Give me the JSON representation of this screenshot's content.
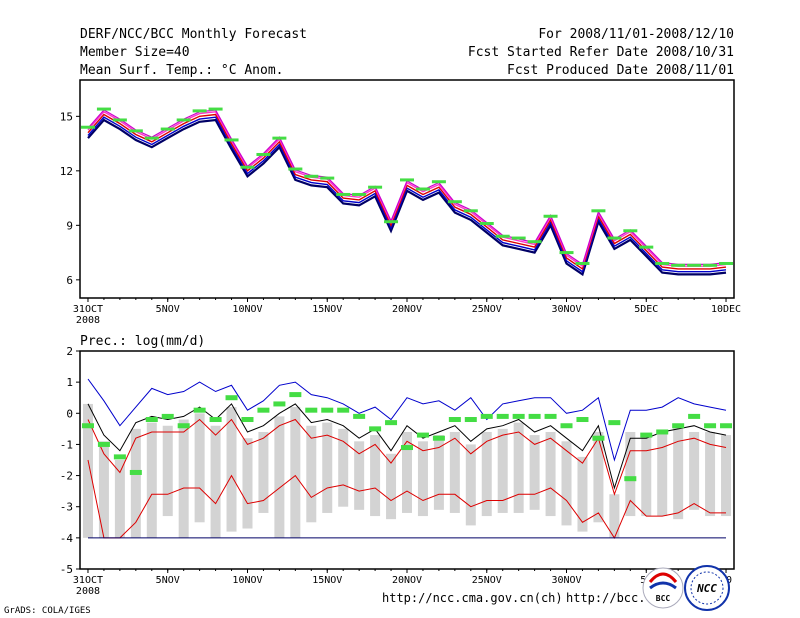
{
  "header": {
    "line1_left": "DERF/NCC/BCC Monthly Forecast",
    "line2_left": "Member Size=40",
    "line3_left": "Mean Surf. Temp.: °C Anom.",
    "line1_right": "For 2008/11/01-2008/12/10",
    "line2_right": "Fcst Started Refer Date 2008/10/31",
    "line3_right": "Fcst Produced Date 2008/11/01"
  },
  "footer": {
    "grads_credit": "GrADS: COLA/IGES",
    "url_1": "http://ncc.cma.gov.cn(ch)",
    "url_2": "http://bcc.",
    "logo_bcc_text": "BCC",
    "logo_ncc_text": "NCC"
  },
  "colors": {
    "blue": "#0000cc",
    "red": "#dd0000",
    "magenta": "#ff33cc",
    "green": "#44dd44",
    "gray": "#d3d3d3",
    "navy": "#000066"
  },
  "chart_data": [
    {
      "type": "line",
      "title": "Mean Surf. Temp.: °C Anom.",
      "x": [
        31,
        32,
        33,
        34,
        35,
        36,
        37,
        38,
        39,
        40,
        41,
        42,
        43,
        44,
        45,
        46,
        47,
        48,
        49,
        50,
        51,
        52,
        53,
        54,
        55,
        56,
        57,
        58,
        59,
        60,
        61,
        62,
        63,
        64,
        65,
        66,
        67,
        68,
        69,
        70,
        71
      ],
      "x_ticks": [
        31,
        36,
        41,
        46,
        51,
        56,
        61,
        66,
        71
      ],
      "x_tick_labels": [
        "31OCT",
        "5NOV",
        "10NOV",
        "15NOV",
        "20NOV",
        "25NOV",
        "30NOV",
        "5DEC",
        "10DEC"
      ],
      "x_sub_label": "2008",
      "ylim": [
        5,
        17
      ],
      "y_ticks": [
        6,
        9,
        12,
        15
      ],
      "series": [
        {
          "name": "mean",
          "color": "#dd0000",
          "values": [
            14.1,
            15.1,
            14.6,
            14.0,
            13.6,
            14.1,
            14.6,
            15.0,
            15.1,
            13.5,
            12.0,
            12.7,
            13.6,
            11.8,
            11.5,
            11.4,
            10.5,
            10.4,
            10.9,
            9.0,
            11.2,
            10.7,
            11.1,
            10.0,
            9.6,
            8.9,
            8.2,
            8.0,
            7.8,
            9.3,
            7.2,
            6.6,
            9.5,
            8.0,
            8.5,
            7.6,
            6.7,
            6.6,
            6.6,
            6.6,
            6.7
          ]
        }
      ],
      "band_offsets_above": [
        0.25,
        0.15
      ],
      "band_offsets_below": [
        -0.15,
        -0.3
      ],
      "markers_green": [
        14.4,
        15.4,
        14.8,
        14.2,
        13.8,
        14.3,
        14.8,
        15.3,
        15.4,
        13.7,
        12.2,
        12.9,
        13.8,
        12.1,
        11.7,
        11.6,
        10.7,
        10.7,
        11.1,
        9.2,
        11.5,
        11.0,
        11.4,
        10.3,
        9.8,
        9.1,
        8.4,
        8.3,
        8.1,
        9.5,
        7.5,
        6.9,
        9.8,
        8.3,
        8.7,
        7.8,
        6.9,
        6.8,
        6.8,
        6.8,
        6.9
      ]
    },
    {
      "type": "line",
      "title": "Prec.: log(mm/d)",
      "x": [
        31,
        32,
        33,
        34,
        35,
        36,
        37,
        38,
        39,
        40,
        41,
        42,
        43,
        44,
        45,
        46,
        47,
        48,
        49,
        50,
        51,
        52,
        53,
        54,
        55,
        56,
        57,
        58,
        59,
        60,
        61,
        62,
        63,
        64,
        65,
        66,
        67,
        68,
        69,
        70,
        71
      ],
      "x_ticks": [
        31,
        36,
        41,
        46,
        51,
        56,
        61,
        66,
        71
      ],
      "x_tick_labels": [
        "31OCT",
        "5NOV",
        "10NOV",
        "15NOV",
        "20NOV",
        "25NOV",
        "30NOV",
        "5D",
        "10"
      ],
      "x_sub_label": "2008",
      "ylim": [
        -5,
        2
      ],
      "y_ticks": [
        -5,
        -4,
        -3,
        -2,
        -1,
        0,
        1,
        2
      ],
      "series": [
        {
          "name": "upper",
          "color": "#0000cc",
          "values": [
            1.1,
            0.4,
            -0.4,
            0.2,
            0.8,
            0.6,
            0.7,
            1.0,
            0.7,
            0.9,
            0.1,
            0.4,
            0.9,
            1.0,
            0.6,
            0.5,
            0.3,
            0.0,
            0.2,
            -0.2,
            0.5,
            0.3,
            0.4,
            0.1,
            0.5,
            -0.2,
            0.3,
            0.4,
            0.5,
            0.5,
            0.0,
            0.1,
            0.5,
            -1.5,
            0.1,
            0.1,
            0.2,
            0.5,
            0.3,
            0.2,
            0.1
          ]
        },
        {
          "name": "mean",
          "color": "#000000",
          "values": [
            0.3,
            -0.7,
            -1.2,
            -0.3,
            -0.1,
            -0.2,
            -0.1,
            0.2,
            -0.2,
            0.3,
            -0.6,
            -0.4,
            0.0,
            0.3,
            -0.3,
            -0.2,
            -0.4,
            -0.8,
            -0.5,
            -1.2,
            -0.4,
            -0.8,
            -0.6,
            -0.4,
            -0.9,
            -0.5,
            -0.4,
            -0.2,
            -0.6,
            -0.4,
            -0.8,
            -1.2,
            -0.4,
            -2.4,
            -0.8,
            -0.8,
            -0.6,
            -0.5,
            -0.4,
            -0.6,
            -0.7
          ]
        },
        {
          "name": "median",
          "color": "#dd0000",
          "values": [
            -0.2,
            -1.3,
            -1.9,
            -0.8,
            -0.6,
            -0.6,
            -0.6,
            -0.2,
            -0.7,
            -0.2,
            -1.0,
            -0.8,
            -0.4,
            -0.2,
            -0.8,
            -0.7,
            -0.9,
            -1.3,
            -1.0,
            -1.6,
            -0.9,
            -1.2,
            -1.1,
            -0.8,
            -1.3,
            -0.9,
            -0.7,
            -0.6,
            -1.0,
            -0.8,
            -1.2,
            -1.6,
            -0.8,
            -2.6,
            -1.2,
            -1.2,
            -1.1,
            -0.9,
            -0.8,
            -1.0,
            -1.1
          ]
        },
        {
          "name": "lower",
          "color": "#dd0000",
          "values": [
            -1.5,
            -4.0,
            -4.0,
            -3.5,
            -2.6,
            -2.6,
            -2.4,
            -2.4,
            -2.9,
            -2.0,
            -2.9,
            -2.8,
            -2.4,
            -2.0,
            -2.7,
            -2.4,
            -2.3,
            -2.5,
            -2.4,
            -2.8,
            -2.5,
            -2.8,
            -2.6,
            -2.6,
            -3.0,
            -2.8,
            -2.8,
            -2.6,
            -2.6,
            -2.4,
            -2.8,
            -3.5,
            -3.2,
            -4.0,
            -2.8,
            -3.3,
            -3.3,
            -3.2,
            -2.9,
            -3.2,
            -3.2
          ]
        },
        {
          "name": "floor",
          "color": "#000066",
          "values": [
            -4,
            -4,
            -4,
            -4,
            -4,
            -4,
            -4,
            -4,
            -4,
            -4,
            -4,
            -4,
            -4,
            -4,
            -4,
            -4,
            -4,
            -4,
            -4,
            -4,
            -4,
            -4,
            -4,
            -4,
            -4,
            -4,
            -4,
            -4,
            -4,
            -4,
            -4,
            -4,
            -4,
            -4,
            -4,
            -4,
            -4,
            -4,
            -4,
            -4,
            -4
          ]
        }
      ],
      "box_ranges": [
        [
          -4,
          0.3
        ],
        [
          -4,
          -0.9
        ],
        [
          -4,
          -1.5
        ],
        [
          -4,
          -0.5
        ],
        [
          -4,
          -0.3
        ],
        [
          -3.3,
          -0.4
        ],
        [
          -4,
          -0.2
        ],
        [
          -3.5,
          0.0
        ],
        [
          -4,
          -0.4
        ],
        [
          -3.8,
          0.2
        ],
        [
          -3.7,
          -0.8
        ],
        [
          -3.2,
          -0.6
        ],
        [
          -4,
          -0.1
        ],
        [
          -4,
          0.2
        ],
        [
          -3.5,
          -0.4
        ],
        [
          -3.2,
          -0.3
        ],
        [
          -3.0,
          -0.5
        ],
        [
          -3.1,
          -0.9
        ],
        [
          -3.3,
          -0.7
        ],
        [
          -3.4,
          -1.3
        ],
        [
          -3.2,
          -0.6
        ],
        [
          -3.3,
          -0.9
        ],
        [
          -3.1,
          -0.7
        ],
        [
          -3.2,
          -0.6
        ],
        [
          -3.6,
          -1.0
        ],
        [
          -3.3,
          -0.6
        ],
        [
          -3.2,
          -0.5
        ],
        [
          -3.2,
          -0.3
        ],
        [
          -3.1,
          -0.7
        ],
        [
          -3.3,
          -0.6
        ],
        [
          -3.6,
          -0.9
        ],
        [
          -3.8,
          -1.4
        ],
        [
          -3.5,
          -0.6
        ],
        [
          -4,
          -2.6
        ],
        [
          -3.3,
          -0.6
        ],
        [
          -3.3,
          -0.7
        ],
        [
          -3.3,
          -0.6
        ],
        [
          -3.4,
          -0.4
        ],
        [
          -3.1,
          -0.6
        ],
        [
          -3.3,
          -0.6
        ],
        [
          -3.3,
          -0.7
        ]
      ],
      "markers_green": [
        -0.4,
        -1.0,
        -1.4,
        -1.9,
        -0.2,
        -0.1,
        -0.4,
        0.1,
        -0.2,
        0.5,
        -0.2,
        0.1,
        0.3,
        0.6,
        0.1,
        0.1,
        0.1,
        -0.1,
        -0.5,
        -0.3,
        -1.1,
        -0.7,
        -0.8,
        -0.2,
        -0.2,
        -0.1,
        -0.1,
        -0.1,
        -0.1,
        -0.1,
        -0.4,
        -0.2,
        -0.8,
        -0.3,
        -2.1,
        -0.7,
        -0.6,
        -0.4,
        -0.1,
        -0.4,
        -0.4
      ]
    }
  ]
}
